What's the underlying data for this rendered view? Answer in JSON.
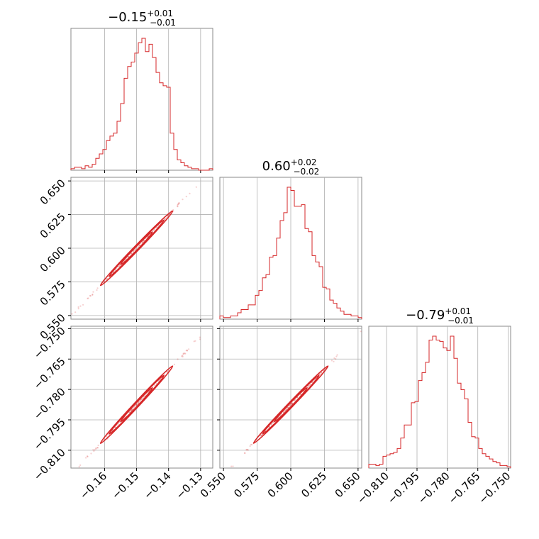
{
  "chart_data": {
    "type": "corner",
    "color": "#d62728",
    "parameters": [
      {
        "median": "−0.15",
        "plus": "+0.01",
        "minus": "−0.01",
        "range": [
          -0.1705,
          -0.1262
        ],
        "ticks": [
          {
            "v": -0.16,
            "label": "−0.16"
          },
          {
            "v": -0.15,
            "label": "−0.15"
          },
          {
            "v": -0.14,
            "label": "−0.14"
          },
          {
            "v": -0.13,
            "label": "−0.13"
          }
        ]
      },
      {
        "median": "0.60",
        "plus": "+0.02",
        "minus": "−0.02",
        "range": [
          0.5473,
          0.6527
        ],
        "ticks": [
          {
            "v": 0.55,
            "label": "0.550"
          },
          {
            "v": 0.575,
            "label": "0.575"
          },
          {
            "v": 0.6,
            "label": "0.600"
          },
          {
            "v": 0.625,
            "label": "0.625"
          },
          {
            "v": 0.65,
            "label": "0.650"
          }
        ]
      },
      {
        "median": "−0.79",
        "plus": "+0.01",
        "minus": "−0.01",
        "range": [
          -0.8188,
          -0.7488
        ],
        "ticks": [
          {
            "v": -0.81,
            "label": "−0.810"
          },
          {
            "v": -0.795,
            "label": "−0.795"
          },
          {
            "v": -0.78,
            "label": "−0.780"
          },
          {
            "v": -0.765,
            "label": "−0.765"
          },
          {
            "v": -0.75,
            "label": "−0.750"
          }
        ]
      }
    ],
    "histograms": [
      [
        1,
        2,
        2,
        1,
        3,
        2,
        4,
        8,
        11,
        14,
        20,
        23,
        25,
        33,
        45,
        62,
        70,
        73,
        79,
        86,
        89,
        80,
        85,
        76,
        66,
        59,
        57,
        56,
        25,
        14,
        7,
        5,
        3,
        2,
        1,
        1,
        0,
        0,
        0,
        1
      ],
      [
        2,
        1,
        1,
        2,
        2,
        4,
        6,
        6,
        9,
        9,
        15,
        18,
        26,
        28,
        39,
        40,
        51,
        62,
        67,
        83,
        81,
        71,
        71,
        72,
        57,
        55,
        40,
        36,
        33,
        20,
        19,
        12,
        10,
        7,
        5,
        3,
        3,
        2,
        2,
        1
      ],
      [
        3,
        3,
        2,
        3,
        9,
        10,
        11,
        12,
        15,
        23,
        33,
        33,
        50,
        51,
        67,
        73,
        81,
        98,
        101,
        98,
        97,
        92,
        90,
        101,
        84,
        65,
        60,
        53,
        35,
        24,
        23,
        15,
        11,
        9,
        7,
        5,
        4,
        2,
        2,
        1
      ]
    ],
    "grid": true
  }
}
